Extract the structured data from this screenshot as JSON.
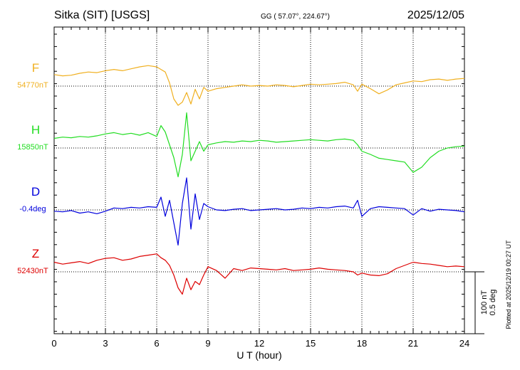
{
  "chart_data": {
    "type": "line",
    "title": "Sitka (SIT)  [USGS]",
    "coords": "GG ( 57.07°, 224.67°)",
    "date": "2025/12/05",
    "xlabel": "U T (hour)",
    "xlim": [
      0,
      24
    ],
    "x_ticks": [
      "0",
      "3",
      "6",
      "9",
      "12",
      "15",
      "18",
      "21",
      "24"
    ],
    "grid": true,
    "plotted_note": "Plotted at 2025/12/19 00:27 UT",
    "scale_labels": [
      "100 nT",
      "0.5 deg"
    ],
    "x_hours": [
      0,
      0.5,
      1,
      1.5,
      2,
      2.5,
      3,
      3.5,
      4,
      4.5,
      5,
      5.5,
      6,
      6.25,
      6.5,
      6.75,
      7,
      7.25,
      7.5,
      7.75,
      8,
      8.25,
      8.5,
      8.75,
      9,
      9.5,
      10,
      10.5,
      11,
      11.5,
      12,
      12.5,
      13,
      13.5,
      14,
      14.5,
      15,
      15.5,
      16,
      16.5,
      17,
      17.5,
      17.75,
      18,
      18.5,
      19,
      19.5,
      20,
      20.5,
      21,
      21.5,
      22,
      22.5,
      23,
      23.5,
      24
    ],
    "series": [
      {
        "name": "F",
        "baseline": "54770nT",
        "color": "#f0b020",
        "values": [
          18,
          16,
          17,
          20,
          22,
          21,
          24,
          26,
          24,
          27,
          30,
          32,
          30,
          26,
          22,
          5,
          -20,
          -30,
          -25,
          -10,
          -28,
          -5,
          -20,
          -2,
          -8,
          -4,
          -2,
          0,
          2,
          0,
          1,
          0,
          2,
          1,
          -1,
          1,
          3,
          2,
          3,
          4,
          6,
          2,
          -8,
          3,
          -4,
          -12,
          -6,
          2,
          5,
          8,
          7,
          10,
          11,
          9,
          11,
          12
        ]
      },
      {
        "name": "H",
        "baseline": "15850nT",
        "color": "#22dd22",
        "values": [
          15,
          17,
          16,
          18,
          17,
          19,
          22,
          24,
          21,
          23,
          20,
          24,
          18,
          35,
          25,
          5,
          -15,
          -45,
          -10,
          55,
          -20,
          -5,
          10,
          -5,
          5,
          8,
          10,
          9,
          11,
          10,
          12,
          11,
          9,
          10,
          11,
          12,
          13,
          12,
          11,
          13,
          14,
          12,
          5,
          -5,
          -10,
          -16,
          -18,
          -20,
          -22,
          -38,
          -30,
          -15,
          -5,
          0,
          2,
          3
        ]
      },
      {
        "name": "D",
        "baseline": "-0.4deg",
        "color": "#0000dd",
        "values": [
          -2,
          -3,
          -1,
          -5,
          -3,
          -6,
          -2,
          3,
          2,
          4,
          3,
          5,
          4,
          20,
          -10,
          15,
          -20,
          -55,
          10,
          50,
          -30,
          25,
          -15,
          10,
          5,
          0,
          -1,
          1,
          2,
          -1,
          0,
          1,
          2,
          0,
          1,
          3,
          2,
          4,
          3,
          5,
          6,
          3,
          15,
          -10,
          2,
          5,
          4,
          3,
          2,
          -8,
          2,
          -2,
          1,
          0,
          -1,
          -3
        ]
      },
      {
        "name": "Z",
        "baseline": "52430nT",
        "color": "#dd0000",
        "values": [
          15,
          12,
          14,
          16,
          13,
          18,
          21,
          22,
          18,
          20,
          24,
          26,
          28,
          22,
          18,
          10,
          -5,
          -25,
          -35,
          -10,
          -28,
          -15,
          -20,
          -5,
          8,
          2,
          -10,
          5,
          2,
          6,
          5,
          4,
          3,
          5,
          2,
          3,
          4,
          6,
          4,
          3,
          2,
          0,
          -5,
          -2,
          -5,
          -6,
          -3,
          5,
          10,
          15,
          13,
          12,
          10,
          8,
          9,
          8
        ]
      }
    ]
  }
}
